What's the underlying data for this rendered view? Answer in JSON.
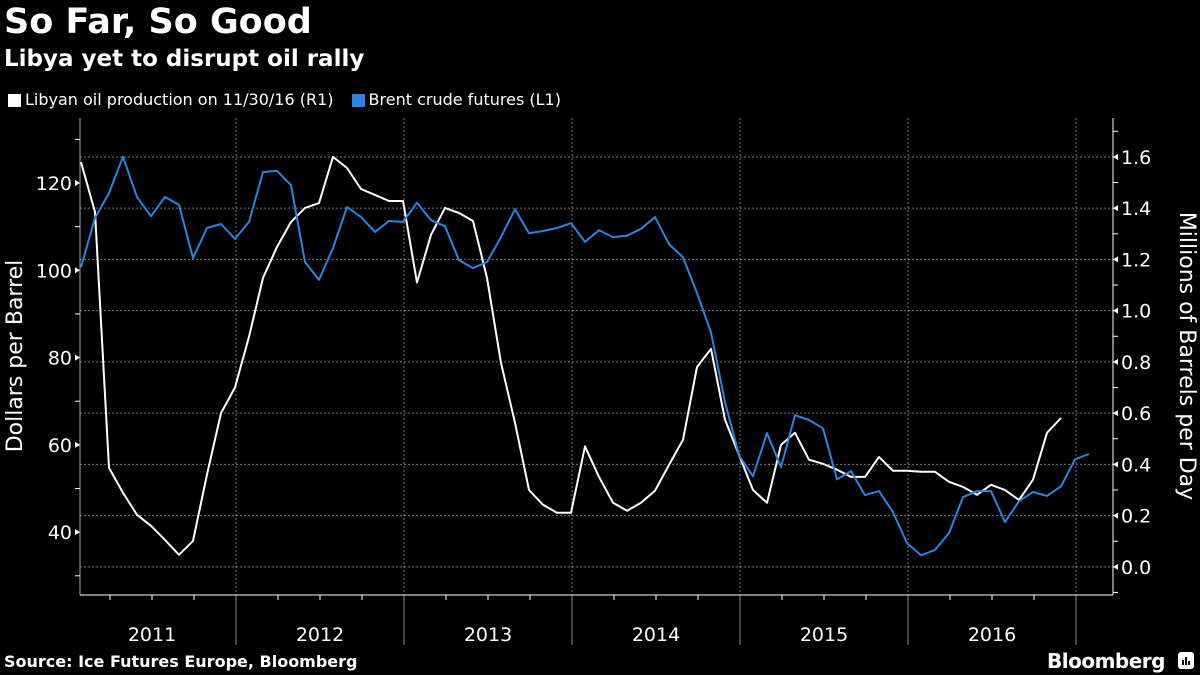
{
  "header": {
    "title": "So Far, So Good",
    "subtitle": "Libya yet to disrupt oil rally"
  },
  "legend": [
    {
      "label": "Libyan oil production on 11/30/16 (R1)",
      "color": "#ffffff"
    },
    {
      "label": "Brent crude futures (L1)",
      "color": "#2c84e0"
    }
  ],
  "footer": {
    "source": "Source: Ice Futures Europe, Bloomberg",
    "brand": "Bloomberg"
  },
  "chart_data": {
    "type": "line",
    "title": "So Far, So Good",
    "subtitle": "Libya yet to disrupt oil rally",
    "xlabel": "",
    "x_tick_labels": [
      "2011",
      "2012",
      "2013",
      "2014",
      "2015",
      "2016"
    ],
    "x_frequency": "monthly",
    "x_start": "2011-01",
    "grid": true,
    "legend_position": "top-left",
    "y_left": {
      "label": "Dollars per Barrel",
      "ticks": [
        40,
        60,
        80,
        100,
        120
      ],
      "range": [
        25.6,
        134.9
      ]
    },
    "y_right": {
      "label": "Millions of Barrels per Day",
      "ticks": [
        "0.0",
        "0.2",
        "0.4",
        "0.6",
        "0.8",
        "1.0",
        "1.2",
        "1.4",
        "1.6"
      ],
      "range": [
        -0.11,
        1.752
      ]
    },
    "series": [
      {
        "name": "Libyan oil production on 11/30/16 (R1)",
        "axis": "right",
        "color": "#ffffff",
        "values": [
          1.58,
          1.385,
          0.386,
          0.289,
          0.203,
          0.16,
          0.105,
          0.047,
          0.101,
          0.36,
          0.6,
          0.7,
          0.898,
          1.128,
          1.249,
          1.346,
          1.401,
          1.42,
          1.6,
          1.557,
          1.475,
          1.452,
          1.428,
          1.428,
          1.11,
          1.296,
          1.401,
          1.381,
          1.35,
          1.128,
          0.796,
          0.562,
          0.3,
          0.242,
          0.211,
          0.211,
          0.47,
          0.351,
          0.25,
          0.219,
          0.25,
          0.297,
          0.398,
          0.496,
          0.78,
          0.851,
          0.574,
          0.437,
          0.3,
          0.25,
          0.476,
          0.523,
          0.418,
          0.402,
          0.379,
          0.351,
          0.351,
          0.429,
          0.375,
          0.375,
          0.371,
          0.371,
          0.332,
          0.312,
          0.281,
          0.32,
          0.3,
          0.261,
          0.34,
          0.523,
          0.581
        ]
      },
      {
        "name": "Brent crude futures (L1)",
        "axis": "left",
        "color": "#2c84e0",
        "values": [
          100.7,
          112.0,
          117.7,
          126.0,
          116.8,
          112.4,
          116.8,
          115.0,
          102.8,
          109.7,
          110.6,
          107.2,
          111.1,
          122.5,
          122.8,
          119.5,
          101.9,
          97.8,
          105.1,
          114.5,
          112.2,
          108.8,
          111.3,
          111.1,
          115.5,
          111.5,
          110.1,
          102.3,
          100.5,
          101.9,
          107.6,
          114.0,
          108.5,
          109.0,
          109.7,
          110.8,
          106.5,
          109.2,
          107.6,
          107.9,
          109.5,
          112.2,
          106.0,
          103.0,
          94.8,
          85.8,
          69.8,
          57.6,
          52.8,
          62.7,
          54.9,
          66.8,
          65.7,
          63.8,
          52.1,
          54.0,
          48.5,
          49.4,
          44.6,
          37.5,
          34.7,
          35.9,
          39.8,
          48.0,
          49.4,
          49.4,
          42.3,
          47.1,
          49.2,
          48.3,
          50.5,
          56.7,
          57.9
        ]
      }
    ]
  }
}
